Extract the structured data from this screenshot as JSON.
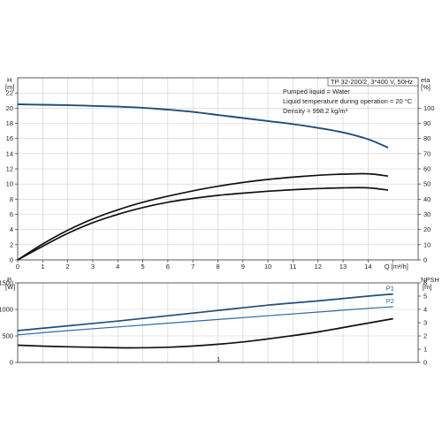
{
  "chart_data": [
    {
      "type": "line",
      "title": "TP 32-200/2, 3*400 V, 50Hz",
      "info_lines": [
        "Pumped liquid = Water",
        "Liquid temperature during operation = 20 °C",
        "Density = 998.2 kg/m³"
      ],
      "xlabel": "Q [m³/h]",
      "ylabel_left_name": "H",
      "ylabel_left_unit": "[m]",
      "ylabel_right_name": "eta",
      "ylabel_right_unit": "[%]",
      "xlim": [
        0,
        16
      ],
      "ylim_left": [
        0,
        24
      ],
      "ylim_right": [
        0,
        120
      ],
      "x_ticks": [
        "0",
        "1",
        "2",
        "3",
        "4",
        "5",
        "6",
        "7",
        "8",
        "9",
        "10",
        "11",
        "12",
        "13",
        "14",
        "Q [m³/h]"
      ],
      "y_ticks_left": [
        "0",
        "2",
        "4",
        "6",
        "8",
        "10",
        "12",
        "14",
        "16",
        "18",
        "20",
        "22"
      ],
      "y_ticks_right": [
        "0",
        "10",
        "20",
        "30",
        "40",
        "50",
        "60",
        "70",
        "80",
        "90",
        "100"
      ],
      "grid": true,
      "series": [
        {
          "axis": "left",
          "color": "#1f4e79",
          "x": [
            0,
            1,
            2,
            3,
            4,
            5,
            6,
            7,
            8,
            9,
            10,
            11,
            12,
            13,
            14,
            14.8
          ],
          "y": [
            20.5,
            20.45,
            20.4,
            20.3,
            20.2,
            20.05,
            19.8,
            19.5,
            19.1,
            18.7,
            18.3,
            17.9,
            17.4,
            16.8,
            15.9,
            14.8
          ]
        },
        {
          "axis": "left",
          "color": "#111111",
          "x": [
            0,
            1,
            2,
            3,
            4,
            5,
            6,
            7,
            8,
            9,
            10,
            11,
            12,
            13,
            14,
            14.8
          ],
          "y": [
            0,
            2.1,
            3.9,
            5.4,
            6.6,
            7.6,
            8.4,
            9.1,
            9.7,
            10.2,
            10.6,
            10.9,
            11.15,
            11.3,
            11.35,
            11.05
          ]
        },
        {
          "axis": "left",
          "color": "#111111",
          "x": [
            0,
            1,
            2,
            3,
            4,
            5,
            6,
            7,
            8,
            9,
            10,
            11,
            12,
            13,
            14,
            14.8
          ],
          "y": [
            0,
            1.8,
            3.5,
            4.9,
            6.0,
            6.9,
            7.6,
            8.1,
            8.5,
            8.8,
            9.05,
            9.25,
            9.4,
            9.5,
            9.5,
            9.2
          ]
        }
      ]
    },
    {
      "type": "line",
      "ylabel_left_name": "P",
      "ylabel_left_unit": "[W]",
      "ylabel_right_name": "NPSH",
      "ylabel_right_unit": "[m]",
      "xlim": [
        0,
        16
      ],
      "ylim_left": [
        0,
        1500
      ],
      "ylim_right": [
        0,
        6
      ],
      "y_ticks_left": [
        "0",
        "500",
        "1000",
        "1500"
      ],
      "y_ticks_right": [
        "0",
        "1",
        "2",
        "3",
        "4",
        "5",
        "6"
      ],
      "grid": true,
      "series": [
        {
          "name": "P1",
          "axis": "left",
          "color": "#1f4e79",
          "x": [
            0,
            2,
            4,
            6,
            8,
            10,
            12,
            14,
            15
          ],
          "y": [
            600,
            690,
            780,
            880,
            980,
            1080,
            1160,
            1250,
            1290
          ]
        },
        {
          "name": "P2",
          "axis": "left",
          "color": "#2e6aa3",
          "x": [
            0,
            2,
            4,
            6,
            8,
            10,
            12,
            14,
            15
          ],
          "y": [
            520,
            600,
            670,
            740,
            810,
            880,
            950,
            1020,
            1050
          ]
        },
        {
          "axis": "right",
          "color": "#111111",
          "x": [
            0,
            1.5,
            3,
            4.5,
            6,
            7.5,
            9,
            10.5,
            12,
            13.5,
            15
          ],
          "y": [
            1.3,
            1.2,
            1.15,
            1.1,
            1.15,
            1.3,
            1.55,
            1.9,
            2.3,
            2.8,
            3.3
          ]
        }
      ],
      "annotation": "1"
    }
  ]
}
